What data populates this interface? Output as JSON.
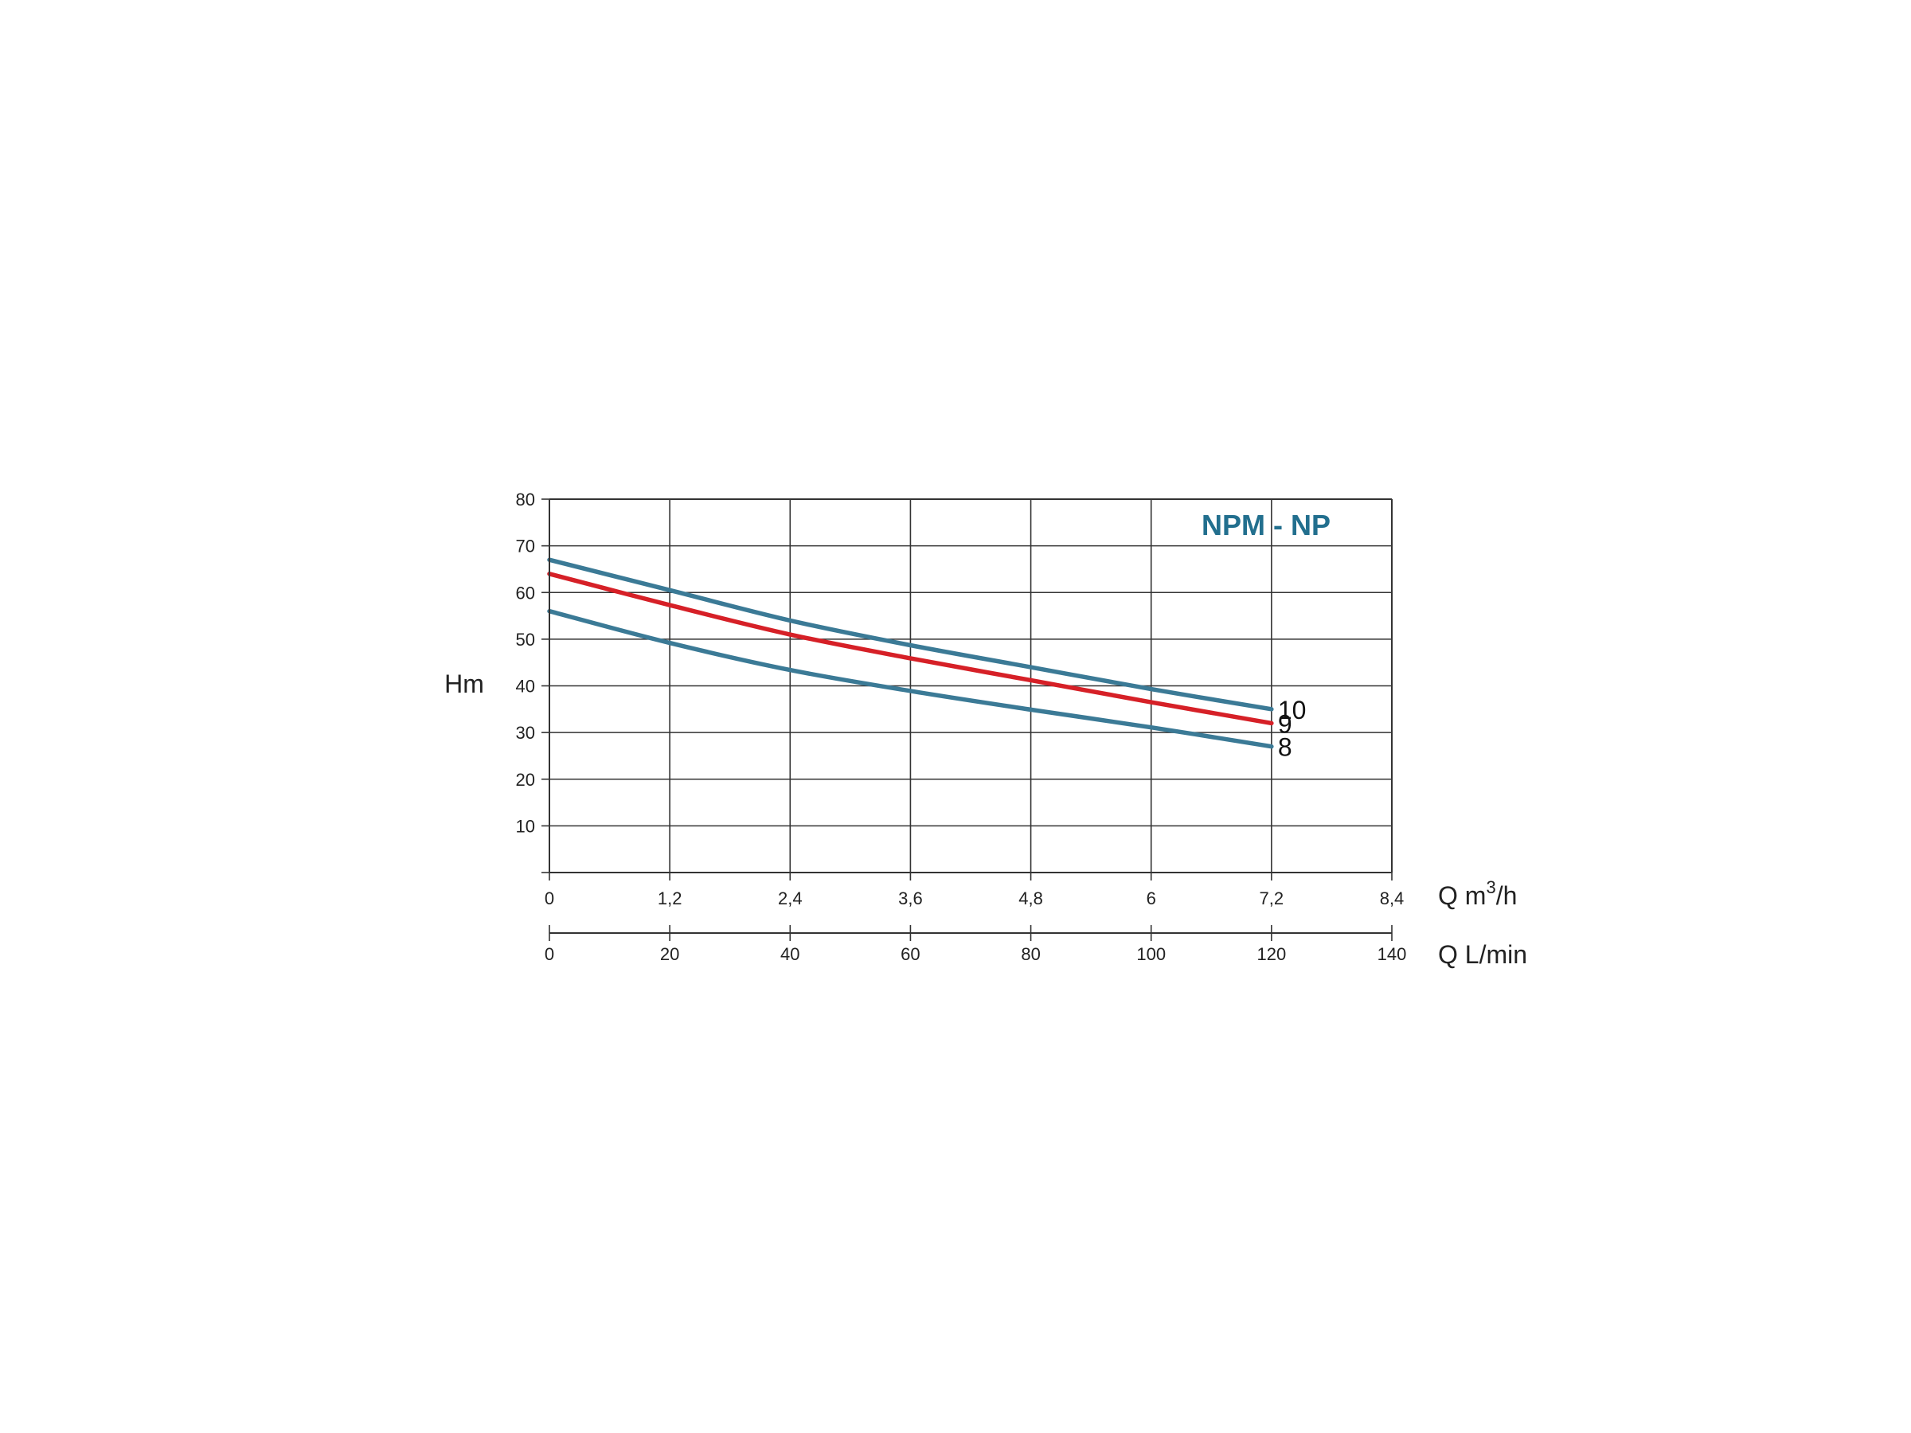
{
  "chart_data": {
    "type": "line",
    "title": "NPM - NP",
    "ylabel": "Hm",
    "xlabel": "Q m3/h",
    "xlabel_main": "Q m",
    "xlabel_sup": "3",
    "xlabel_tail": "/h",
    "x2label": "Q L/min",
    "ylim": [
      0,
      80
    ],
    "xlim": [
      0,
      8.4
    ],
    "x2lim": [
      0,
      140
    ],
    "y_ticks": [
      "10",
      "20",
      "30",
      "40",
      "50",
      "60",
      "70",
      "80"
    ],
    "x_ticks": [
      "0",
      "1,2",
      "2,4",
      "3,6",
      "4,8",
      "6",
      "7,2",
      "8,4"
    ],
    "x2_ticks": [
      "0",
      "20",
      "40",
      "60",
      "80",
      "100",
      "120",
      "140"
    ],
    "grid": true,
    "series": [
      {
        "name": "10",
        "color": "#3b7a96",
        "x": [
          0,
          1.2,
          2.4,
          3.6,
          4.8,
          6,
          7.2
        ],
        "y": [
          67,
          60.5,
          54,
          48.7,
          44,
          39.3,
          35
        ]
      },
      {
        "name": "9",
        "color": "#d62027",
        "x": [
          0,
          1.2,
          2.4,
          3.6,
          4.8,
          6,
          7.2
        ],
        "y": [
          64,
          57.3,
          51,
          45.9,
          41.2,
          36.5,
          32
        ]
      },
      {
        "name": "8",
        "color": "#3b7a96",
        "x": [
          0,
          1.2,
          2.4,
          3.6,
          4.8,
          6,
          7.2
        ],
        "y": [
          56,
          49.2,
          43.4,
          38.9,
          34.9,
          31.1,
          27
        ]
      }
    ],
    "title_color": "#226f8e"
  }
}
